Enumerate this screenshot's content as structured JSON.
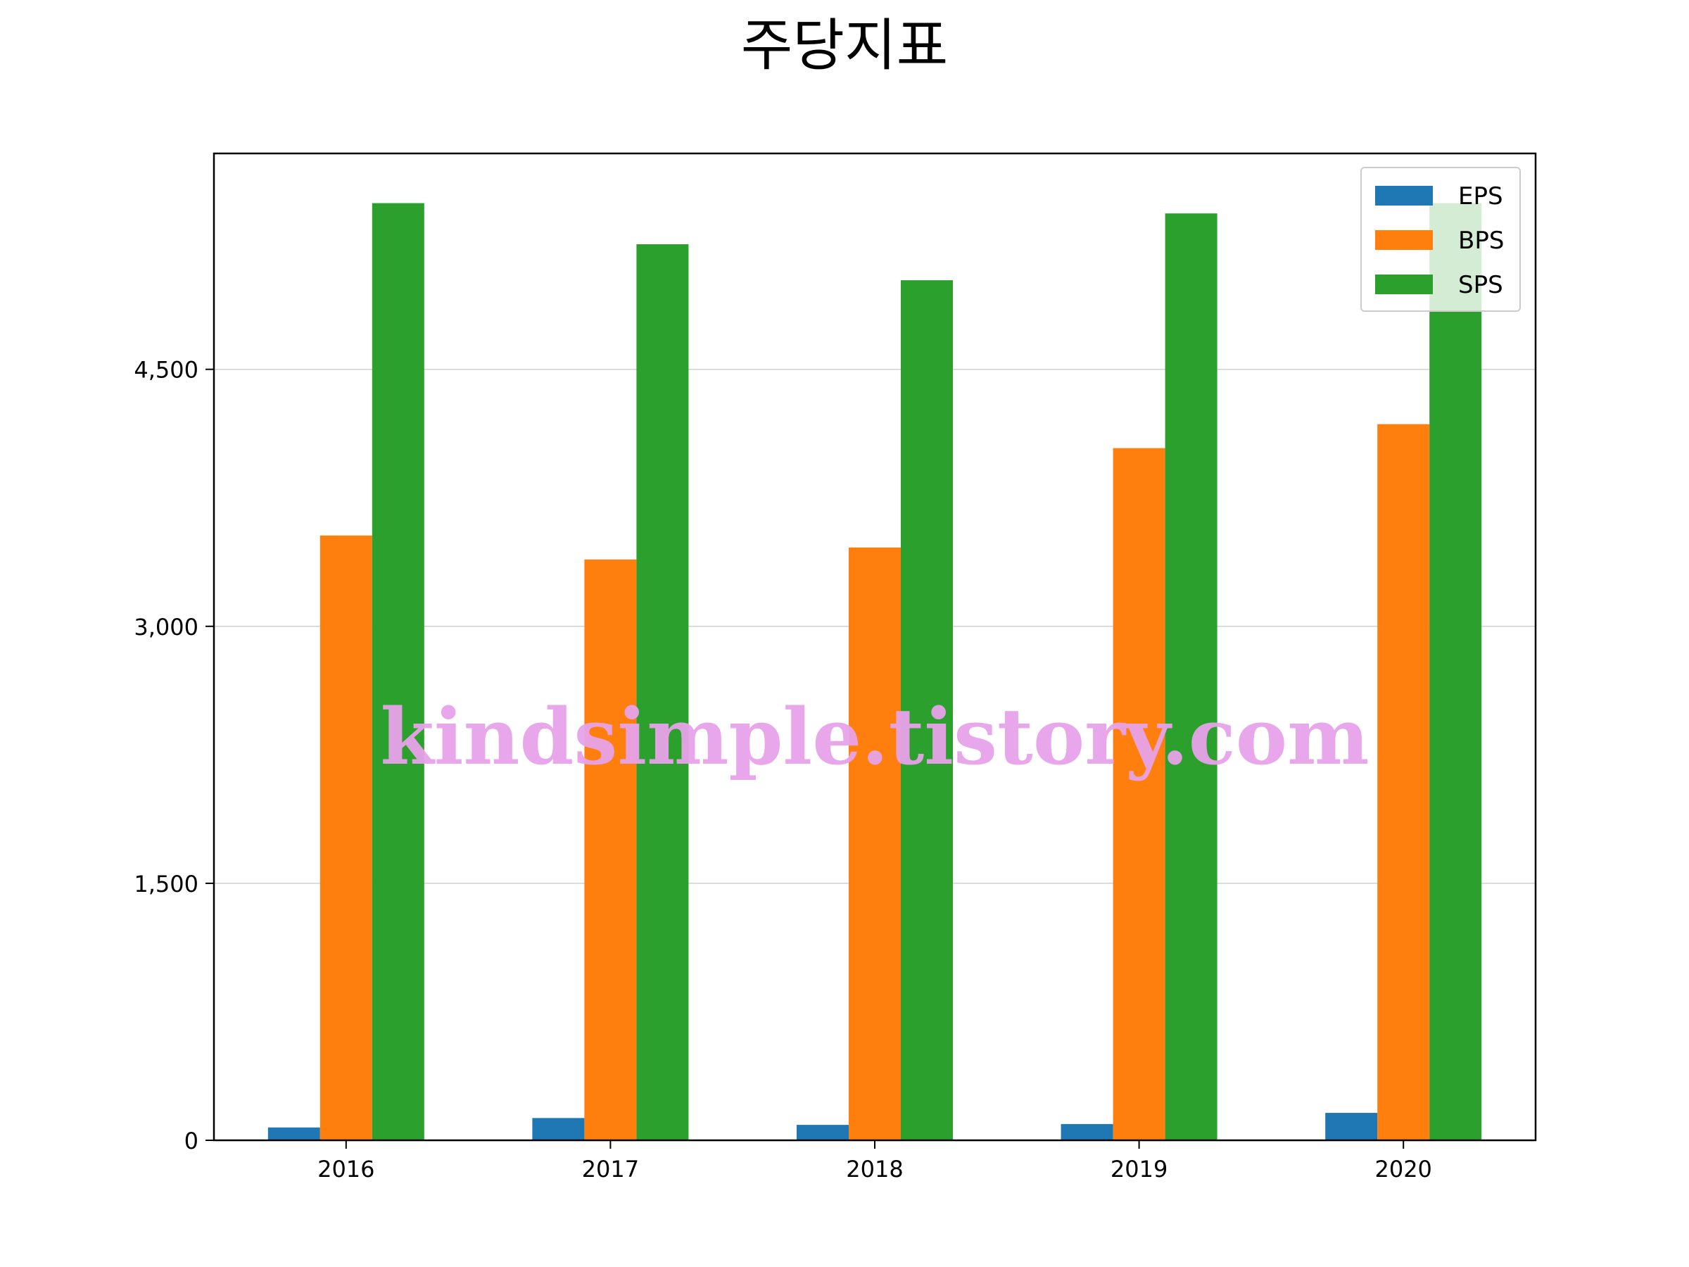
{
  "chart_data": {
    "type": "bar",
    "title": "주당지표",
    "xlabel": "",
    "ylabel": "",
    "categories": [
      "2016",
      "2017",
      "2018",
      "2019",
      "2020"
    ],
    "series": [
      {
        "name": "EPS",
        "color": "#1f77b4",
        "values": [
          75,
          130,
          90,
          95,
          160
        ]
      },
      {
        "name": "BPS",
        "color": "#ff7f0e",
        "values": [
          3530,
          3390,
          3460,
          4040,
          4180
        ]
      },
      {
        "name": "SPS",
        "color": "#2ca02c",
        "values": [
          5470,
          5230,
          5020,
          5410,
          5470
        ]
      }
    ],
    "ylim": [
      0,
      5760
    ],
    "yticks": [
      0,
      1500,
      3000,
      4500
    ],
    "ytick_labels": [
      "0",
      "1,500",
      "3,000",
      "4,500"
    ],
    "grid": "y",
    "legend_position": "top-right",
    "watermark": "kindsimple.tistory.com"
  }
}
